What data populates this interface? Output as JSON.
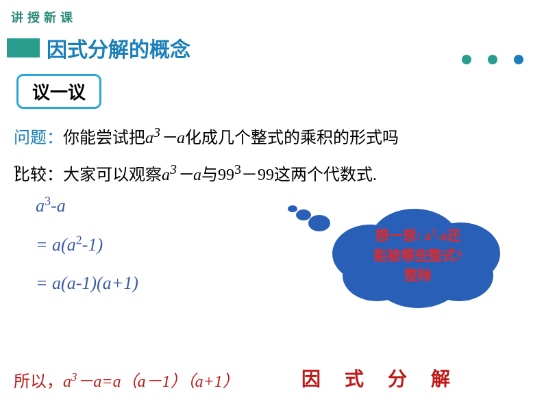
{
  "header": {
    "label": "讲授新课"
  },
  "title": {
    "block_color": "#2a9d8f",
    "text": "因式分解的概念",
    "text_color": "#1a7fb8"
  },
  "dots": {
    "colors": [
      "#2a9d8f",
      "#2a9d8f",
      "#1a7fb8"
    ]
  },
  "discuss": {
    "text": "议一议",
    "border_color": "#2aa6d8"
  },
  "question": {
    "label": "问题：",
    "body_pre": "你能尝试把",
    "expr_html": "a<sup>3</sup>－a",
    "body_post": "化成几个整式的乘积的形式吗",
    "qmark": "?"
  },
  "compare": {
    "label": "比较：",
    "body_pre": "大家可以观察",
    "expr1_html": "a<sup>3</sup>－a",
    "mid": "与",
    "expr2_html": "99<sup>3</sup>－99",
    "body_post": "这两个代数式."
  },
  "math": {
    "color": "#3a5aa8",
    "line1_html": "a<sup>3</sup>-a",
    "line2_html": "= a(a<sup>2</sup>-1)",
    "line3_html": "= a(a-1)(a+1)"
  },
  "cloud": {
    "bg_color": "#2a5fb8",
    "text_color": "#e02a2a",
    "line1_html": "想一想: a<sup>3</sup>-a还",
    "line2": "能被哪些整式?",
    "line3": "整除"
  },
  "conclusion": {
    "color": "#c01818",
    "prefix": "所以，",
    "expr_html": "a<sup>3</sup>－a=a（a－1）（a+1）"
  },
  "factoring_label": "因 式 分 解"
}
